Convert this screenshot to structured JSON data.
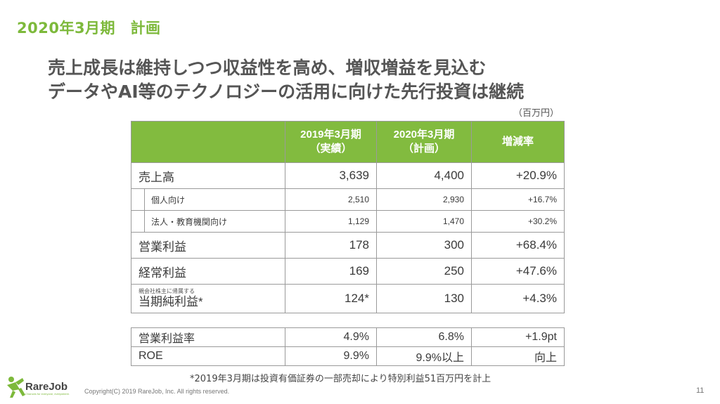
{
  "section_title": "2020年3月期　計画",
  "headline": {
    "line1": "売上成長は維持しつつ収益性を高め、増収増益を見込む",
    "line2": "データやAI等のテクノロジーの活用に向けた先行投資は継続"
  },
  "unit_note": "（百万円）",
  "table": {
    "headers": {
      "col1": "",
      "col2_line1": "2019年3月期",
      "col2_line2": "（実績）",
      "col3_line1": "2020年3月期",
      "col3_line2": "（計画）",
      "col4": "増減率"
    },
    "rows": [
      {
        "label": "売上高",
        "fy2019": "3,639",
        "fy2020": "4,400",
        "change": "+20.9%"
      },
      {
        "label": "個人向け",
        "fy2019": "2,510",
        "fy2020": "2,930",
        "change": "+16.7%"
      },
      {
        "label": "法人・教育機関向け",
        "fy2019": "1,129",
        "fy2020": "1,470",
        "change": "+30.2%"
      },
      {
        "label": "営業利益",
        "fy2019": "178",
        "fy2020": "300",
        "change": "+68.4%"
      },
      {
        "label": "経常利益",
        "fy2019": "169",
        "fy2020": "250",
        "change": "+47.6%"
      },
      {
        "label_small": "親会社株主に帰属する",
        "label": "当期純利益*",
        "fy2019": "124*",
        "fy2020": "130",
        "change": "+4.3%"
      }
    ]
  },
  "table2": {
    "rows": [
      {
        "label": "営業利益率",
        "fy2019": "4.9%",
        "fy2020": "6.8%",
        "change": "+1.9pt"
      },
      {
        "label": "ROE",
        "fy2019": "9.9%",
        "fy2020": "9.9%以上",
        "change": "向上"
      }
    ]
  },
  "footnote": "*2019年3月期は投資有価証券の一部売却により特別利益51百万円を計上",
  "logo": {
    "name": "RareJob",
    "tagline": "Chances for everyone, everywhere.",
    "color": "#7db93b"
  },
  "copyright": "Copyright(C) 2019 RareJob, Inc. All rights reserved.",
  "page_number": "11",
  "colors": {
    "accent": "#82bb3f",
    "title": "#7db93b"
  }
}
